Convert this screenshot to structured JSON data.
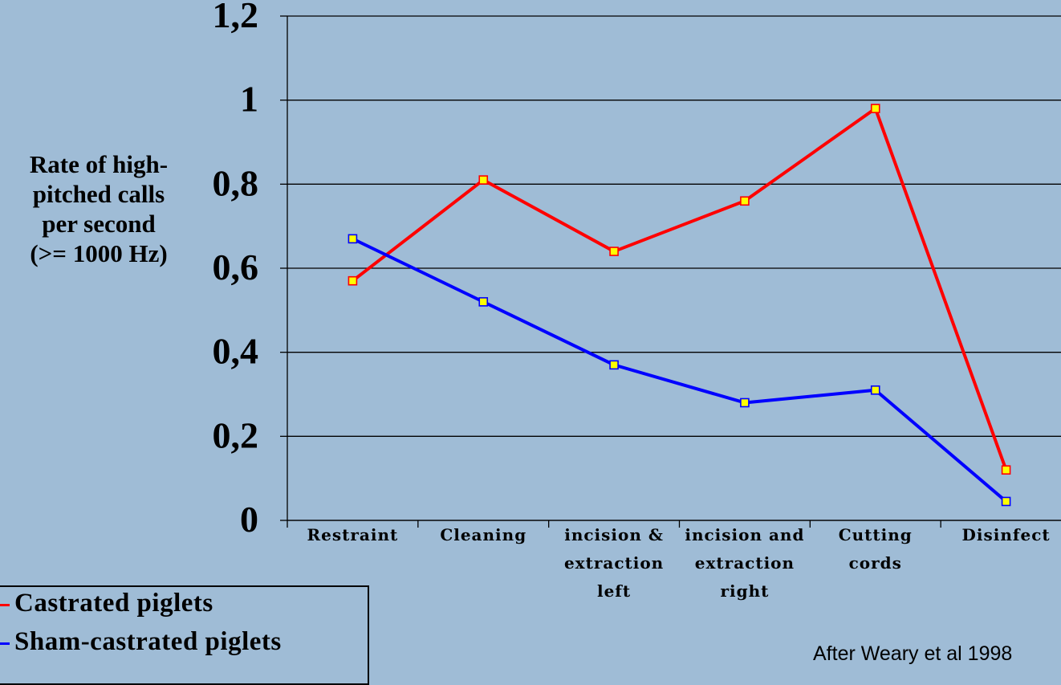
{
  "chart_data": {
    "type": "line",
    "categories": [
      [
        "Restraint"
      ],
      [
        "Cleaning"
      ],
      [
        "incision &",
        "extraction",
        "left"
      ],
      [
        "incision and",
        "extraction",
        "right"
      ],
      [
        "Cutting",
        "cords"
      ],
      [
        "Disinfect"
      ]
    ],
    "series": [
      {
        "name": "Castrated piglets",
        "color": "#ff0000",
        "values": [
          0.57,
          0.81,
          0.64,
          0.76,
          0.98,
          0.12
        ]
      },
      {
        "name": "Sham-castrated piglets",
        "color": "#0000ff",
        "values": [
          0.67,
          0.52,
          0.37,
          0.28,
          0.31,
          0.045
        ]
      }
    ],
    "yticks": [
      "0",
      "0,2",
      "0,4",
      "0,6",
      "0,8",
      "1",
      "1,2"
    ],
    "ylabel": [
      "Rate of high-",
      "pitched calls",
      "per second",
      "(>= 1000 Hz)"
    ],
    "ylim": [
      0,
      1.2
    ],
    "grid": true,
    "legend_position": "bottom-left",
    "marker_color": "#ffff00"
  },
  "source_note": "After Weary et al 1998"
}
